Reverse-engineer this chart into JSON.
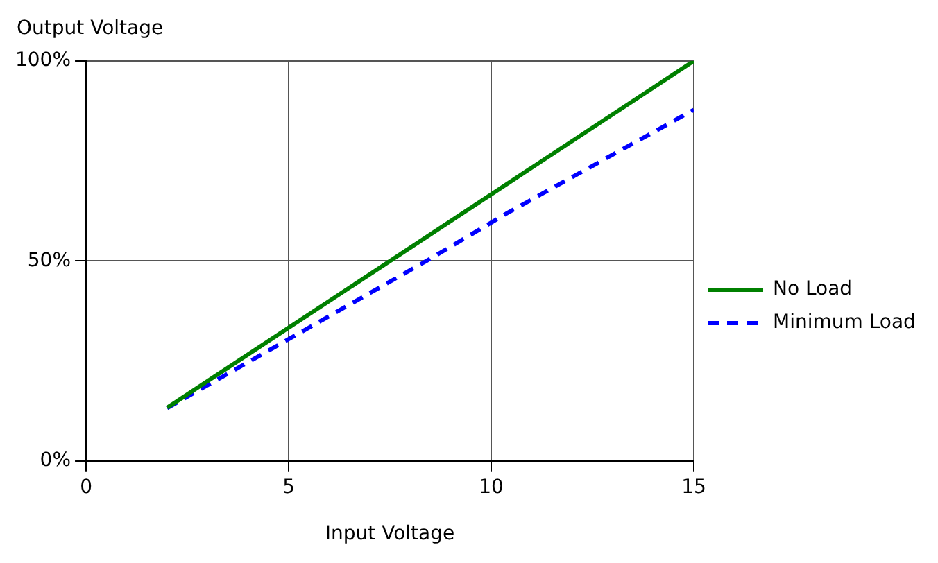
{
  "chart_data": {
    "type": "line",
    "xlabel": "Input Voltage",
    "ylabel": "Output Voltage",
    "xlim": [
      0,
      15
    ],
    "xticks": [
      0,
      5,
      10,
      15
    ],
    "ylim": [
      0,
      100
    ],
    "yticks": [
      {
        "value": 0,
        "label": "0%"
      },
      {
        "value": 50,
        "label": "50%"
      },
      {
        "value": 100,
        "label": "100%"
      }
    ],
    "grid": true,
    "legend": "right",
    "marker": "none",
    "series": [
      {
        "name": "No Load",
        "color": "#008000",
        "x": [
          2,
          15
        ],
        "values": [
          13.3,
          100
        ],
        "line_style": "solid"
      },
      {
        "name": "Minimum Load",
        "color": "#0000ff",
        "x": [
          2,
          8.4,
          10.4,
          15
        ],
        "values": [
          13.2,
          50,
          62,
          87.8
        ],
        "line_style": "dashed"
      }
    ]
  }
}
